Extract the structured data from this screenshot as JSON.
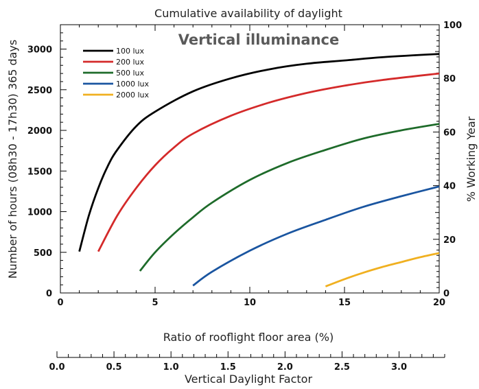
{
  "chart_data": {
    "type": "line",
    "title": "Cumulative availability of daylight",
    "subtitle": "Vertical illuminance",
    "xlabel": "Ratio of rooflight floor area (%)",
    "ylabel": "Number of hours (08h30 - 17h30) 365 days",
    "y2label": "% Working Year",
    "x2label": "Vertical Daylight Factor",
    "xlim": [
      0,
      20
    ],
    "ylim": [
      0,
      3300
    ],
    "y2lim": [
      0,
      100
    ],
    "x2lim": [
      0,
      3.4
    ],
    "xticks": [
      "0",
      "5",
      "10",
      "15",
      "20"
    ],
    "yticks": [
      "0",
      "500",
      "1000",
      "1500",
      "2000",
      "2500",
      "3000"
    ],
    "y2ticks": [
      "0",
      "20",
      "40",
      "60",
      "80",
      "100"
    ],
    "x2ticks": [
      "0.0",
      "0.5",
      "1.0",
      "1.5",
      "2.0",
      "2.5",
      "3.0"
    ],
    "grid": false,
    "legend_position": "top-left",
    "series": [
      {
        "name": "100 lux",
        "color": "#000000",
        "x": [
          1,
          1.5,
          2,
          2.5,
          3,
          4,
          5,
          7,
          9,
          11,
          13,
          15,
          17,
          20
        ],
        "y": [
          510,
          950,
          1290,
          1560,
          1760,
          2050,
          2230,
          2480,
          2640,
          2750,
          2820,
          2860,
          2900,
          2940
        ]
      },
      {
        "name": "200 lux",
        "color": "#d42a2a",
        "x": [
          2,
          3,
          4,
          5,
          6,
          7,
          9,
          11,
          13,
          15,
          17,
          20
        ],
        "y": [
          510,
          950,
          1290,
          1570,
          1790,
          1960,
          2180,
          2340,
          2460,
          2550,
          2620,
          2700
        ]
      },
      {
        "name": "500 lux",
        "color": "#1e6b2a",
        "x": [
          4.2,
          5,
          6,
          7,
          8,
          10,
          12,
          14,
          16,
          18,
          20
        ],
        "y": [
          270,
          500,
          730,
          930,
          1110,
          1390,
          1600,
          1760,
          1900,
          2000,
          2080
        ]
      },
      {
        "name": "1000 lux",
        "color": "#1a55a0",
        "x": [
          7,
          8,
          10,
          12,
          14,
          16,
          18,
          20
        ],
        "y": [
          90,
          260,
          520,
          730,
          900,
          1060,
          1190,
          1310
        ]
      },
      {
        "name": "2000 lux",
        "color": "#f0b020",
        "x": [
          14,
          15,
          16,
          17,
          18,
          19,
          20
        ],
        "y": [
          80,
          170,
          250,
          320,
          380,
          440,
          490
        ]
      }
    ]
  }
}
